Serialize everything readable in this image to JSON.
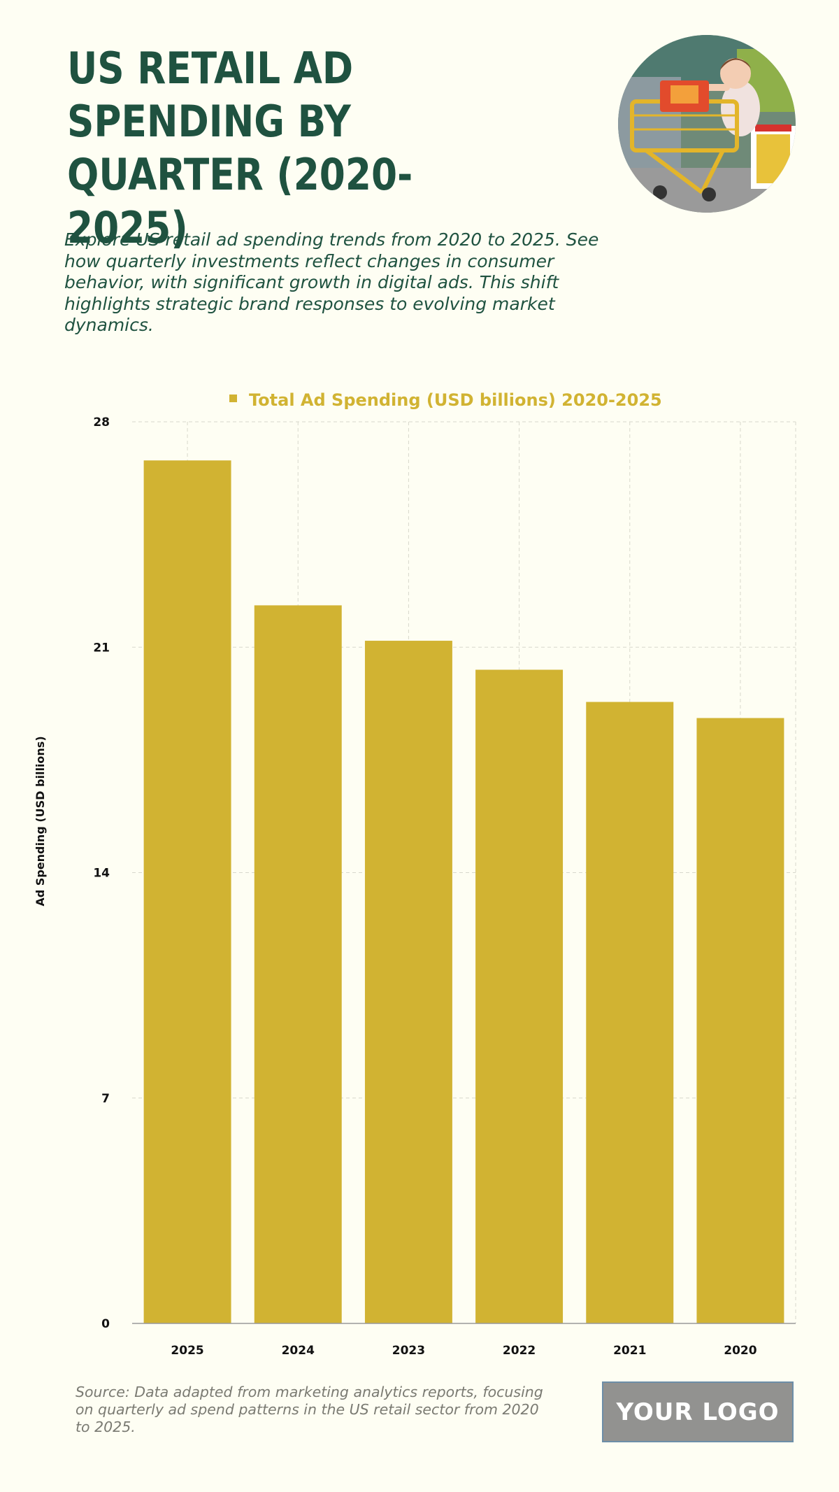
{
  "header": {
    "title": "US RETAIL AD SPENDING BY QUARTER (2020-2025)",
    "subtitle": "Explore US retail ad spending trends from 2020 to 2025. See how quarterly investments reflect changes in consumer behavior, with significant growth in digital ads. This shift highlights strategic brand responses to evolving market dynamics."
  },
  "chart_data": {
    "type": "bar",
    "categories": [
      "2025",
      "2024",
      "2023",
      "2022",
      "2021",
      "2020"
    ],
    "series": [
      {
        "name": "Total Ad Spending (USD billions) 2020-2025",
        "values": [
          26.8,
          22.3,
          21.2,
          20.3,
          19.3,
          18.8
        ]
      }
    ],
    "title": "",
    "xlabel": "",
    "ylabel": "Ad Spending (USD billions)",
    "ylim": [
      0,
      28
    ],
    "yticks": [
      0,
      7,
      14,
      21,
      28
    ],
    "grid": true,
    "legend_position": "top-center",
    "colors": {
      "bar": "#d1b332",
      "legend_text": "#d1b332",
      "grid": "#d8d8cc",
      "axis": "#999999"
    }
  },
  "footer": {
    "source": "Source: Data adapted from marketing analytics reports, focusing on quarterly ad spend patterns in the US retail sector from 2020 to 2025.",
    "logo_text": "YOUR LOGO"
  }
}
